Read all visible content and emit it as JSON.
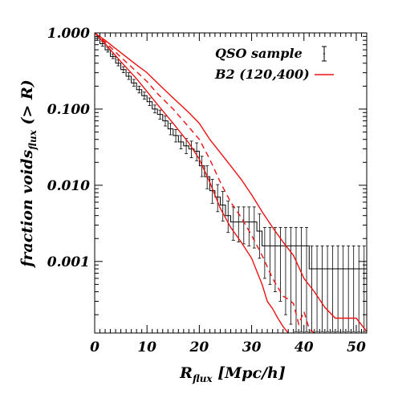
{
  "chart_data": {
    "type": "line",
    "xlabel_main": "R",
    "xlabel_sub": "flux",
    "xlabel_rest": " [Mpc/h]",
    "ylabel_main": "fraction voids",
    "ylabel_sub": "flux",
    "ylabel_rest": " (> R)",
    "xlim": [
      0,
      52
    ],
    "ylim": [
      0.000115,
      1.0
    ],
    "yscale": "log",
    "x_ticks": [
      0,
      10,
      20,
      30,
      40,
      50
    ],
    "x_tick_labels": [
      "0",
      "10",
      "20",
      "30",
      "40",
      "50"
    ],
    "y_ticks": [
      1.0,
      0.1,
      0.01,
      0.001
    ],
    "y_tick_labels": [
      "1.000",
      "0.100",
      "0.010",
      "0.001"
    ],
    "legend_position": "top-right",
    "series": [
      {
        "name": "QSO sample",
        "style": "step-errorbar",
        "color": "#000000",
        "x": [
          1,
          2,
          3,
          4,
          5,
          6,
          7,
          8,
          9,
          10,
          11,
          12,
          13,
          14,
          15,
          16,
          17,
          18,
          19,
          20,
          21,
          22,
          23,
          24,
          25,
          26,
          27,
          28,
          29,
          30,
          31,
          32,
          33,
          34,
          35,
          36,
          37,
          38,
          39,
          40,
          41,
          42,
          43,
          44,
          45,
          46,
          47,
          48,
          49,
          50,
          51,
          52
        ],
        "y": [
          0.85,
          0.72,
          0.6,
          0.49,
          0.4,
          0.33,
          0.27,
          0.22,
          0.18,
          0.15,
          0.125,
          0.1,
          0.085,
          0.07,
          0.055,
          0.045,
          0.037,
          0.033,
          0.03,
          0.028,
          0.018,
          0.013,
          0.0085,
          0.007,
          0.0055,
          0.004,
          0.0033,
          0.0033,
          0.0033,
          0.0033,
          0.0033,
          0.0025,
          0.0016,
          0.0016,
          0.0016,
          0.0016,
          0.0016,
          0.0016,
          0.0016,
          0.0016,
          0.0016,
          0.0008,
          0.0008,
          0.0008,
          0.0008,
          0.0008,
          0.0008,
          0.0008,
          0.0008,
          0.0008,
          0.0008,
          0.0008
        ],
        "err_low": [
          0.8,
          0.67,
          0.56,
          0.46,
          0.37,
          0.3,
          0.245,
          0.2,
          0.163,
          0.135,
          0.111,
          0.089,
          0.074,
          0.06,
          0.046,
          0.037,
          0.03,
          0.026,
          0.023,
          0.021,
          0.013,
          0.009,
          0.0058,
          0.0045,
          0.0034,
          0.0024,
          0.0019,
          0.0018,
          0.0017,
          0.0016,
          0.0015,
          0.0011,
          0.0006,
          0.0005,
          0.0004,
          0.0003,
          0.0002,
          0.00015,
          0.00012,
          0.00012,
          0.00012,
          0.00012,
          0.00012,
          0.00012,
          0.00012,
          0.00012,
          0.00012,
          0.00012,
          0.00012,
          0.00012,
          0.00012,
          0.00012
        ],
        "err_high": [
          0.9,
          0.77,
          0.65,
          0.53,
          0.44,
          0.36,
          0.3,
          0.245,
          0.2,
          0.167,
          0.14,
          0.113,
          0.097,
          0.081,
          0.065,
          0.054,
          0.045,
          0.041,
          0.038,
          0.036,
          0.024,
          0.018,
          0.012,
          0.0102,
          0.0083,
          0.0062,
          0.0052,
          0.0052,
          0.0052,
          0.0052,
          0.0052,
          0.0042,
          0.0028,
          0.0028,
          0.0028,
          0.0028,
          0.0028,
          0.0028,
          0.0028,
          0.0028,
          0.0028,
          0.0016,
          0.0016,
          0.0016,
          0.0016,
          0.0016,
          0.0016,
          0.0016,
          0.0016,
          0.0016,
          0.0016,
          0.0016
        ]
      },
      {
        "name": "B2 (120,400)",
        "style": "solid",
        "color": "#ee1111",
        "x": [
          0,
          2,
          5,
          8,
          10,
          12,
          15,
          18,
          20,
          22,
          25,
          28,
          30,
          32,
          34,
          36,
          38,
          40,
          42,
          44,
          46,
          48,
          50,
          52
        ],
        "y": [
          1.0,
          0.8,
          0.55,
          0.38,
          0.3,
          0.22,
          0.14,
          0.09,
          0.065,
          0.04,
          0.022,
          0.012,
          0.0075,
          0.0045,
          0.0028,
          0.0018,
          0.0012,
          0.0006,
          0.0004,
          0.00025,
          0.00018,
          0.00018,
          0.00018,
          0.00012
        ]
      },
      {
        "name": "",
        "style": "solid",
        "color": "#ee1111",
        "x": [
          0,
          2,
          5,
          8,
          10,
          12,
          15,
          18,
          20,
          22,
          24,
          26,
          28,
          30,
          32,
          33,
          34,
          35,
          36,
          37
        ],
        "y": [
          1.0,
          0.72,
          0.42,
          0.25,
          0.17,
          0.115,
          0.065,
          0.036,
          0.022,
          0.011,
          0.005,
          0.0028,
          0.0018,
          0.0011,
          0.0005,
          0.0003,
          0.00024,
          0.00018,
          0.00014,
          0.000115
        ]
      },
      {
        "name": "",
        "style": "dashed",
        "color": "#ee1111",
        "x": [
          0,
          2,
          5,
          8,
          10,
          12,
          15,
          18,
          20,
          22,
          24,
          26,
          28,
          30,
          32,
          34,
          36,
          37,
          38,
          39,
          40,
          41,
          42
        ],
        "y": [
          1.0,
          0.76,
          0.48,
          0.31,
          0.23,
          0.16,
          0.1,
          0.058,
          0.04,
          0.022,
          0.011,
          0.006,
          0.0038,
          0.0022,
          0.0012,
          0.0006,
          0.00035,
          0.00032,
          0.00028,
          0.00015,
          0.00022,
          0.00013,
          0.000115
        ]
      }
    ]
  }
}
